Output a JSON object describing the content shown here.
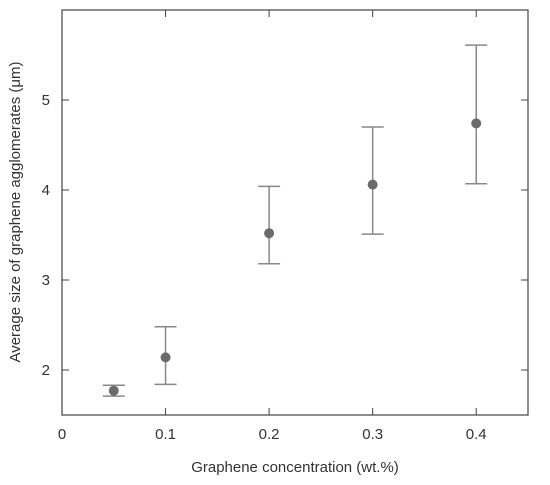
{
  "chart_data": {
    "type": "scatter",
    "title": "",
    "xlabel": "Graphene concentration (wt.%)",
    "ylabel": "Average size of graphene agglomerates (μm)",
    "xlim": [
      0,
      0.45
    ],
    "ylim": [
      1.5,
      6.0
    ],
    "x_ticks": [
      0,
      0.1,
      0.2,
      0.3,
      0.4
    ],
    "x_tick_labels": [
      "0",
      "0.1",
      "0.2",
      "0.3",
      "0.4"
    ],
    "y_ticks": [
      2,
      3,
      4,
      5
    ],
    "y_tick_labels": [
      "2",
      "3",
      "4",
      "5"
    ],
    "grid": false,
    "series": [
      {
        "color": "#6b6b6b",
        "error_bar_color": "#888888",
        "points": [
          {
            "x": 0.05,
            "y": 1.77,
            "err_low": 1.71,
            "err_high": 1.83
          },
          {
            "x": 0.1,
            "y": 2.14,
            "err_low": 1.84,
            "err_high": 2.48
          },
          {
            "x": 0.2,
            "y": 3.52,
            "err_low": 3.18,
            "err_high": 4.04
          },
          {
            "x": 0.3,
            "y": 4.06,
            "err_low": 3.51,
            "err_high": 4.7
          },
          {
            "x": 0.4,
            "y": 4.74,
            "err_low": 4.07,
            "err_high": 5.61
          }
        ]
      }
    ]
  }
}
